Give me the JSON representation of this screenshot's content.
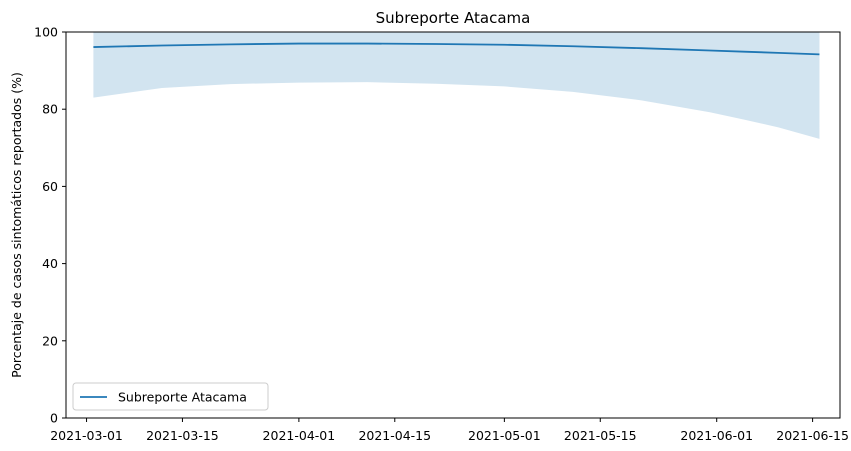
{
  "chart_data": {
    "type": "line",
    "title": "Subreporte Atacama",
    "xlabel": "",
    "ylabel": "Porcentaje de casos sintomáticos reportados (%)",
    "ylim": [
      0,
      100
    ],
    "xlim": [
      "2021-02-26",
      "2021-06-19"
    ],
    "yticks": [
      0,
      20,
      40,
      60,
      80,
      100
    ],
    "xticks": [
      "2021-03-01",
      "2021-03-15",
      "2021-04-01",
      "2021-04-15",
      "2021-05-01",
      "2021-05-15",
      "2021-06-01",
      "2021-06-15"
    ],
    "grid": false,
    "legend_position": "bottom-left",
    "line_color": "#1f77b4",
    "band_color": "#1f77b4",
    "series": [
      {
        "name": "Subreporte Atacama",
        "x": [
          "2021-03-02",
          "2021-03-12",
          "2021-03-22",
          "2021-04-01",
          "2021-04-11",
          "2021-04-21",
          "2021-05-01",
          "2021-05-11",
          "2021-05-21",
          "2021-05-31",
          "2021-06-05",
          "2021-06-10",
          "2021-06-16"
        ],
        "y": [
          96.1,
          96.5,
          96.8,
          97.0,
          97.0,
          96.9,
          96.7,
          96.3,
          95.8,
          95.2,
          94.9,
          94.6,
          94.2
        ],
        "lower": [
          83.0,
          85.5,
          86.5,
          86.9,
          87.0,
          86.6,
          85.9,
          84.5,
          82.3,
          79.2,
          77.3,
          75.3,
          72.3
        ],
        "upper": [
          100,
          100,
          100,
          100,
          100,
          100,
          100,
          100,
          100,
          100,
          100,
          100,
          100
        ]
      }
    ]
  }
}
